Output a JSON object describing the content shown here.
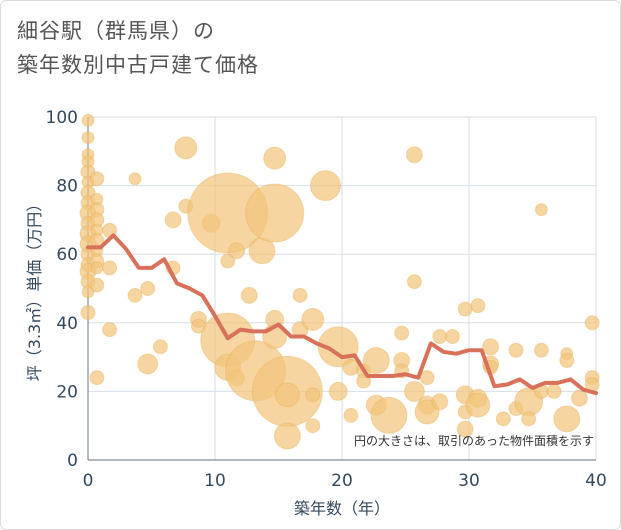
{
  "title_lines": [
    "細谷駅（群馬県）の",
    "築年数別中古戸建て価格"
  ],
  "colors": {
    "bubble": "#f2c57c",
    "bubble_stroke": "#e0a84e",
    "line": "#d9705a",
    "grid": "#d5dde6",
    "axis_text": "#34495e",
    "plot_bg": "#ffffff"
  },
  "chart_data": {
    "type": "scatter",
    "title": "細谷駅（群馬県）の築年数別中古戸建て価格",
    "xlabel": "築年数（年）",
    "ylabel": "坪（3.3㎡）単価（万円）",
    "xlim": [
      0,
      40
    ],
    "ylim": [
      0,
      100
    ],
    "xticks": [
      0,
      10,
      20,
      30,
      40
    ],
    "yticks": [
      0,
      20,
      40,
      60,
      80,
      100
    ],
    "grid": true,
    "note": "円の大きさは、取引のあった物件面積を示す",
    "series": [
      {
        "name": "average",
        "kind": "line",
        "x": [
          0,
          1,
          2,
          3,
          4,
          5,
          6,
          7,
          8,
          9,
          10,
          11,
          12,
          13,
          14,
          15,
          16,
          17,
          18,
          19,
          20,
          21,
          22,
          23,
          24,
          25,
          26,
          27,
          28,
          29,
          30,
          31,
          32,
          33,
          34,
          35,
          36,
          37,
          38,
          39,
          40
        ],
        "y": [
          62,
          62,
          65.5,
          61.5,
          56,
          56,
          58.5,
          51.5,
          50,
          48,
          42,
          35.5,
          38,
          37.5,
          37.5,
          39.5,
          36,
          36,
          34,
          32.5,
          30,
          30.5,
          24.5,
          24.5,
          24.5,
          25,
          24,
          34,
          31.5,
          31,
          32,
          32,
          21.5,
          22,
          23.5,
          21,
          22.5,
          22.5,
          23.5,
          20.5,
          19.5
        ]
      },
      {
        "name": "transactions",
        "kind": "bubble",
        "points": [
          {
            "x": 0,
            "y": 99,
            "r": 6
          },
          {
            "x": 0,
            "y": 94,
            "r": 6
          },
          {
            "x": 0,
            "y": 89,
            "r": 6
          },
          {
            "x": 0,
            "y": 87,
            "r": 6
          },
          {
            "x": 0,
            "y": 84,
            "r": 7
          },
          {
            "x": 0,
            "y": 81,
            "r": 6
          },
          {
            "x": 0,
            "y": 78,
            "r": 7
          },
          {
            "x": 0,
            "y": 75,
            "r": 7
          },
          {
            "x": 0,
            "y": 72,
            "r": 8
          },
          {
            "x": 0,
            "y": 69,
            "r": 7
          },
          {
            "x": 0,
            "y": 66,
            "r": 8
          },
          {
            "x": 0,
            "y": 63,
            "r": 8
          },
          {
            "x": 0,
            "y": 60,
            "r": 7
          },
          {
            "x": 0,
            "y": 57,
            "r": 7
          },
          {
            "x": 0,
            "y": 55,
            "r": 8
          },
          {
            "x": 0,
            "y": 52,
            "r": 7
          },
          {
            "x": 0,
            "y": 49,
            "r": 6
          },
          {
            "x": 0,
            "y": 43,
            "r": 7
          },
          {
            "x": 0.7,
            "y": 82,
            "r": 7
          },
          {
            "x": 0.7,
            "y": 76,
            "r": 6
          },
          {
            "x": 0.7,
            "y": 73,
            "r": 7
          },
          {
            "x": 0.7,
            "y": 70,
            "r": 7
          },
          {
            "x": 0.7,
            "y": 67,
            "r": 6
          },
          {
            "x": 0.7,
            "y": 64,
            "r": 7
          },
          {
            "x": 0.7,
            "y": 61,
            "r": 6
          },
          {
            "x": 0.7,
            "y": 58,
            "r": 7
          },
          {
            "x": 0.7,
            "y": 56,
            "r": 6
          },
          {
            "x": 0.7,
            "y": 51,
            "r": 7
          },
          {
            "x": 0.7,
            "y": 24,
            "r": 7
          },
          {
            "x": 1.7,
            "y": 67,
            "r": 7
          },
          {
            "x": 1.7,
            "y": 56,
            "r": 7
          },
          {
            "x": 1.7,
            "y": 38,
            "r": 7
          },
          {
            "x": 3.7,
            "y": 82,
            "r": 6
          },
          {
            "x": 3.7,
            "y": 48,
            "r": 7
          },
          {
            "x": 4.7,
            "y": 50,
            "r": 7
          },
          {
            "x": 4.7,
            "y": 28,
            "r": 10
          },
          {
            "x": 5.7,
            "y": 33,
            "r": 7
          },
          {
            "x": 6.7,
            "y": 70,
            "r": 8
          },
          {
            "x": 6.7,
            "y": 56,
            "r": 7
          },
          {
            "x": 7.7,
            "y": 91,
            "r": 11
          },
          {
            "x": 7.7,
            "y": 74,
            "r": 7
          },
          {
            "x": 8.7,
            "y": 41,
            "r": 8
          },
          {
            "x": 8.7,
            "y": 39,
            "r": 7
          },
          {
            "x": 9.7,
            "y": 69,
            "r": 9
          },
          {
            "x": 11,
            "y": 72,
            "r": 40
          },
          {
            "x": 11,
            "y": 58,
            "r": 7
          },
          {
            "x": 11,
            "y": 35,
            "r": 27
          },
          {
            "x": 11,
            "y": 27,
            "r": 13
          },
          {
            "x": 11.7,
            "y": 61,
            "r": 8
          },
          {
            "x": 11.7,
            "y": 24,
            "r": 8
          },
          {
            "x": 12.7,
            "y": 48,
            "r": 8
          },
          {
            "x": 13.2,
            "y": 26,
            "r": 30
          },
          {
            "x": 13.7,
            "y": 61,
            "r": 13
          },
          {
            "x": 14.7,
            "y": 88,
            "r": 11
          },
          {
            "x": 14.7,
            "y": 72,
            "r": 29
          },
          {
            "x": 14.7,
            "y": 41,
            "r": 9
          },
          {
            "x": 14.7,
            "y": 36,
            "r": 12
          },
          {
            "x": 15.7,
            "y": 20,
            "r": 35
          },
          {
            "x": 15.7,
            "y": 19,
            "r": 12
          },
          {
            "x": 15.7,
            "y": 7,
            "r": 13
          },
          {
            "x": 16.7,
            "y": 48,
            "r": 7
          },
          {
            "x": 16.7,
            "y": 38,
            "r": 8
          },
          {
            "x": 17.7,
            "y": 41,
            "r": 11
          },
          {
            "x": 17.7,
            "y": 19,
            "r": 7
          },
          {
            "x": 17.7,
            "y": 10,
            "r": 7
          },
          {
            "x": 18.7,
            "y": 80,
            "r": 15
          },
          {
            "x": 19.7,
            "y": 33,
            "r": 20
          },
          {
            "x": 19.7,
            "y": 20,
            "r": 9
          },
          {
            "x": 20.7,
            "y": 27,
            "r": 8
          },
          {
            "x": 20.7,
            "y": 13,
            "r": 7
          },
          {
            "x": 21.7,
            "y": 26,
            "r": 7
          },
          {
            "x": 21.7,
            "y": 23,
            "r": 7
          },
          {
            "x": 22.7,
            "y": 29,
            "r": 13
          },
          {
            "x": 22.7,
            "y": 16,
            "r": 10
          },
          {
            "x": 23.7,
            "y": 13,
            "r": 18
          },
          {
            "x": 24.7,
            "y": 37,
            "r": 7
          },
          {
            "x": 24.7,
            "y": 29,
            "r": 8
          },
          {
            "x": 24.7,
            "y": 26,
            "r": 7
          },
          {
            "x": 25.7,
            "y": 89,
            "r": 8
          },
          {
            "x": 25.7,
            "y": 52,
            "r": 7
          },
          {
            "x": 25.7,
            "y": 20,
            "r": 10
          },
          {
            "x": 26.7,
            "y": 24,
            "r": 7
          },
          {
            "x": 26.7,
            "y": 16,
            "r": 9
          },
          {
            "x": 26.7,
            "y": 14,
            "r": 12
          },
          {
            "x": 27.7,
            "y": 36,
            "r": 7
          },
          {
            "x": 27.7,
            "y": 17,
            "r": 8
          },
          {
            "x": 28.7,
            "y": 36,
            "r": 7
          },
          {
            "x": 29.7,
            "y": 44,
            "r": 7
          },
          {
            "x": 29.7,
            "y": 19,
            "r": 9
          },
          {
            "x": 29.7,
            "y": 14,
            "r": 7
          },
          {
            "x": 29.7,
            "y": 9,
            "r": 8
          },
          {
            "x": 30.7,
            "y": 45,
            "r": 7
          },
          {
            "x": 30.7,
            "y": 18,
            "r": 9
          },
          {
            "x": 30.7,
            "y": 16,
            "r": 12
          },
          {
            "x": 31.7,
            "y": 33,
            "r": 8
          },
          {
            "x": 31.7,
            "y": 28,
            "r": 8
          },
          {
            "x": 31.7,
            "y": 27,
            "r": 7
          },
          {
            "x": 32.7,
            "y": 12,
            "r": 7
          },
          {
            "x": 33.7,
            "y": 32,
            "r": 7
          },
          {
            "x": 33.7,
            "y": 15,
            "r": 7
          },
          {
            "x": 34.7,
            "y": 17,
            "r": 14
          },
          {
            "x": 34.7,
            "y": 12,
            "r": 7
          },
          {
            "x": 35.7,
            "y": 73,
            "r": 6
          },
          {
            "x": 35.7,
            "y": 32,
            "r": 7
          },
          {
            "x": 35.7,
            "y": 20,
            "r": 7
          },
          {
            "x": 36.7,
            "y": 20,
            "r": 7
          },
          {
            "x": 37.7,
            "y": 31,
            "r": 6
          },
          {
            "x": 37.7,
            "y": 29,
            "r": 7
          },
          {
            "x": 37.7,
            "y": 12,
            "r": 13
          },
          {
            "x": 38.7,
            "y": 18,
            "r": 8
          },
          {
            "x": 39.7,
            "y": 40,
            "r": 7
          },
          {
            "x": 39.7,
            "y": 24,
            "r": 7
          },
          {
            "x": 39.7,
            "y": 22,
            "r": 7
          }
        ]
      }
    ]
  }
}
